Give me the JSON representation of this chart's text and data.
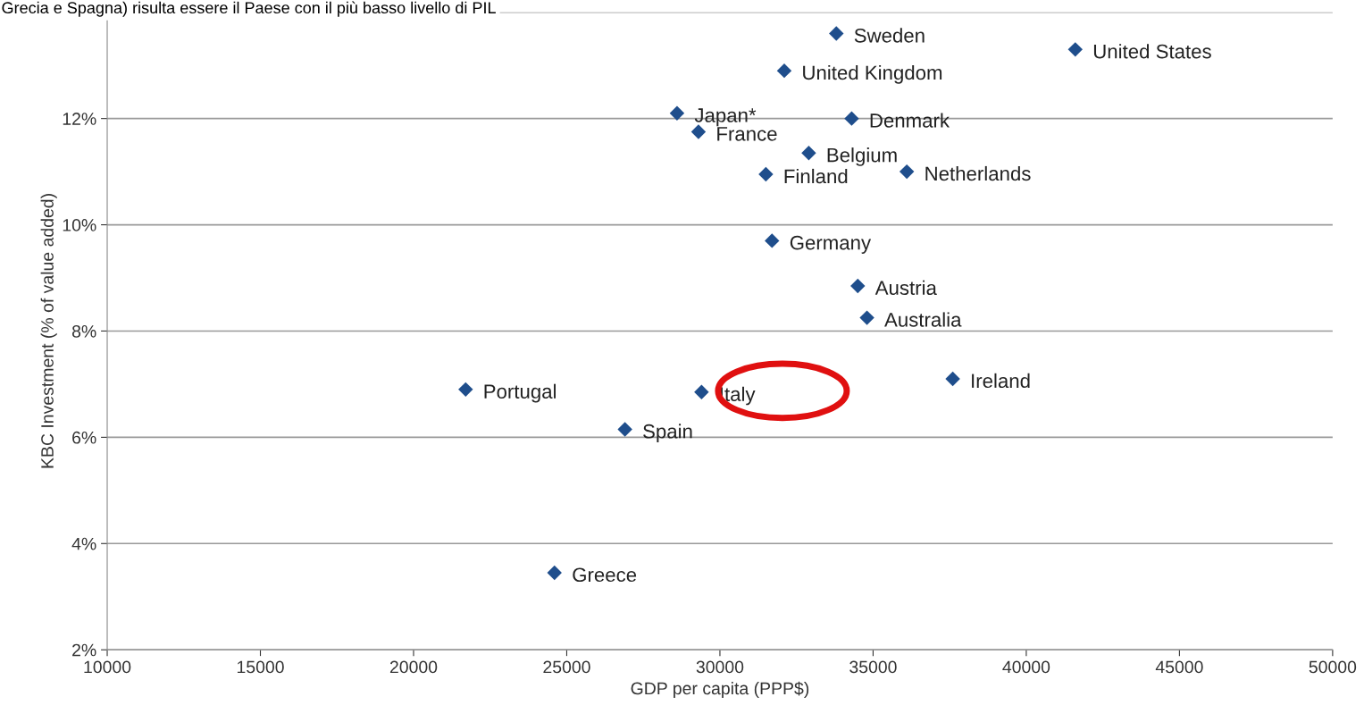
{
  "chart_data": {
    "type": "scatter",
    "xlabel": "GDP per capita (PPP$)",
    "ylabel": "KBC Investment (% of value added)",
    "x": [
      33800,
      41600,
      32100,
      28600,
      34300,
      29300,
      32900,
      31500,
      36100,
      31700,
      34500,
      34800,
      37600,
      21700,
      29400,
      26900,
      24600
    ],
    "series": [
      {
        "color": "#1f4e8c",
        "values": [
          13.6,
          13.3,
          12.9,
          12.1,
          12.0,
          11.75,
          11.35,
          10.95,
          11.0,
          9.7,
          8.85,
          8.25,
          7.1,
          6.9,
          6.85,
          6.15,
          3.45
        ]
      }
    ],
    "marker": "diamond",
    "grid": "y",
    "legend": false,
    "xlim": [
      10000,
      50000
    ],
    "xticks": [
      10000,
      15000,
      20000,
      25000,
      30000,
      35000,
      40000,
      45000,
      50000
    ],
    "ylim": [
      2,
      14
    ],
    "yticks": [
      {
        "value": 2,
        "label": "2%"
      },
      {
        "value": 4,
        "label": "4%"
      },
      {
        "value": 6,
        "label": "6%"
      },
      {
        "value": 8,
        "label": "8%"
      },
      {
        "value": 10,
        "label": "10%"
      },
      {
        "value": 12,
        "label": "12%"
      },
      {
        "value": 14,
        "label": null
      }
    ],
    "annotations": [
      "Grecia e Spagna) risulta essere il Paese con il più basso livello di PIL",
      {
        "text": "Sweden",
        "x": 33800,
        "y": 13.6
      },
      {
        "text": "United States",
        "x": 41600,
        "y": 13.3
      },
      {
        "text": "United Kingdom",
        "x": 32100,
        "y": 12.9
      },
      {
        "text": "Japan*",
        "x": 28600,
        "y": 12.1
      },
      {
        "text": "Denmark",
        "x": 34300,
        "y": 12.0
      },
      {
        "text": "France",
        "x": 29300,
        "y": 11.75
      },
      {
        "text": "Belgium",
        "x": 32900,
        "y": 11.35
      },
      {
        "text": "Finland",
        "x": 31500,
        "y": 10.95
      },
      {
        "text": "Netherlands",
        "x": 36100,
        "y": 11.0
      },
      {
        "text": "Germany",
        "x": 31700,
        "y": 9.7
      },
      {
        "text": "Austria",
        "x": 34500,
        "y": 8.85
      },
      {
        "text": "Australia",
        "x": 34800,
        "y": 8.25
      },
      {
        "text": "Ireland",
        "x": 37600,
        "y": 7.1
      },
      {
        "text": "Portugal",
        "x": 21700,
        "y": 6.9
      },
      {
        "text": "Italy",
        "x": 29400,
        "y": 6.85
      },
      {
        "text": "Spain",
        "x": 26900,
        "y": 6.15
      },
      {
        "text": "Greece",
        "x": 24600,
        "y": 3.45
      }
    ]
  }
}
